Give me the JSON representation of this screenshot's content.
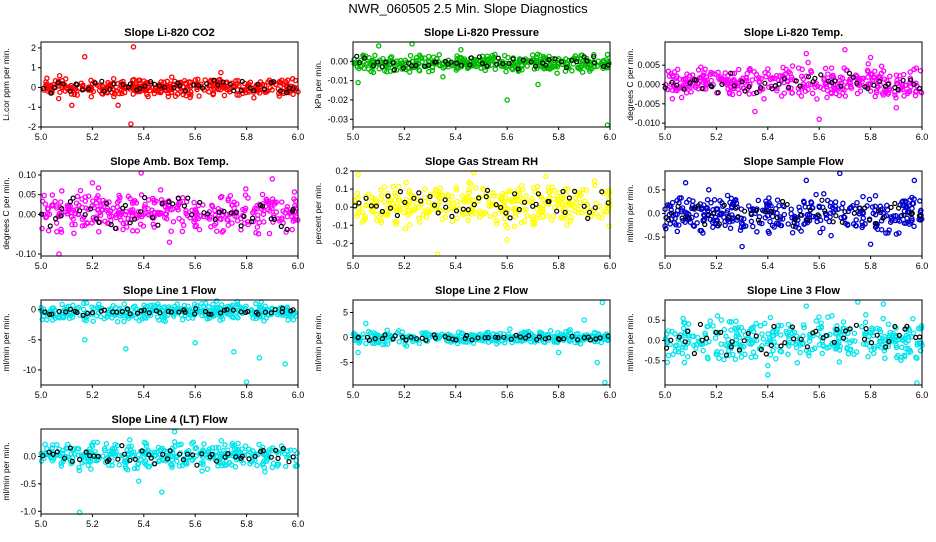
{
  "title": "NWR_060505  2.5 Min. Slope Diagnostics",
  "chart_data": [
    {
      "type": "scatter",
      "title": "Slope Li-820 CO2",
      "ylabel": "Li.cor ppm per min.",
      "color": "#ff0000",
      "xlim": [
        5.0,
        6.0
      ],
      "ylim": [
        -2,
        2.3
      ],
      "xticks": [
        "5.0",
        "5.2",
        "5.4",
        "5.6",
        "5.8",
        "6.0"
      ],
      "yticks": [
        {
          "v": -2,
          "label": "-2"
        },
        {
          "v": -1,
          "label": "-1"
        },
        {
          "v": 0,
          "label": "0"
        },
        {
          "v": 1,
          "label": "1"
        },
        {
          "v": 2,
          "label": "2"
        }
      ],
      "band": [
        -0.5,
        0.5
      ],
      "outliers": [
        [
          5.17,
          1.55
        ],
        [
          5.35,
          -1.85
        ],
        [
          5.36,
          2.05
        ],
        [
          5.12,
          -0.9
        ],
        [
          5.3,
          -0.9
        ],
        [
          5.7,
          0.75
        ]
      ],
      "n": 360,
      "nblack": 50,
      "blackspread": 0.25,
      "seed": 11
    },
    {
      "type": "scatter",
      "title": "Slope Li-820 Pressure",
      "ylabel": "kPa per min.",
      "color": "#00bb00",
      "xlim": [
        5.0,
        6.0
      ],
      "ylim": [
        -0.034,
        0.01
      ],
      "xticks": [
        "5.0",
        "5.2",
        "5.4",
        "5.6",
        "5.8",
        "6.0"
      ],
      "yticks": [
        {
          "v": -0.03,
          "label": "-0.03"
        },
        {
          "v": -0.02,
          "label": "-0.02"
        },
        {
          "v": -0.01,
          "label": "-0.01"
        },
        {
          "v": 0.0,
          "label": "0.00"
        }
      ],
      "band": [
        -0.006,
        0.004
      ],
      "outliers": [
        [
          5.1,
          0.008
        ],
        [
          5.23,
          0.009
        ],
        [
          5.35,
          -0.008
        ],
        [
          5.72,
          -0.012
        ],
        [
          5.99,
          -0.033
        ],
        [
          5.6,
          -0.02
        ],
        [
          5.02,
          -0.011
        ],
        [
          5.42,
          0.006
        ]
      ],
      "n": 360,
      "nblack": 50,
      "blackspread": 0.0025,
      "seed": 23
    },
    {
      "type": "scatter",
      "title": "Slope Li-820 Temp.",
      "ylabel": "degrees C per min.",
      "color": "#ff00ff",
      "xlim": [
        5.0,
        6.0
      ],
      "ylim": [
        -0.011,
        0.011
      ],
      "xticks": [
        "5.0",
        "5.2",
        "5.4",
        "5.6",
        "5.8",
        "6.0"
      ],
      "yticks": [
        {
          "v": -0.01,
          "label": "-0.010"
        },
        {
          "v": -0.005,
          "label": "-0.005"
        },
        {
          "v": 0.0,
          "label": "0.000"
        },
        {
          "v": 0.005,
          "label": "0.005"
        }
      ],
      "band": [
        -0.004,
        0.005
      ],
      "outliers": [
        [
          5.6,
          -0.009
        ],
        [
          5.55,
          0.008
        ],
        [
          5.35,
          -0.007
        ],
        [
          5.8,
          0.007
        ],
        [
          5.9,
          -0.006
        ],
        [
          5.7,
          0.009
        ]
      ],
      "n": 360,
      "nblack": 50,
      "blackspread": 0.002,
      "seed": 37
    },
    {
      "type": "scatter",
      "title": "Slope Amb. Box Temp.",
      "ylabel": "degrees C per min.",
      "color": "#ff00ff",
      "xlim": [
        5.0,
        6.0
      ],
      "ylim": [
        -0.105,
        0.11
      ],
      "xticks": [
        "5.0",
        "5.2",
        "5.4",
        "5.6",
        "5.8",
        "6.0"
      ],
      "yticks": [
        {
          "v": -0.1,
          "label": "-0.10"
        },
        {
          "v": 0.0,
          "label": "0.00"
        },
        {
          "v": 0.05,
          "label": "0.05"
        },
        {
          "v": 0.1,
          "label": "0.10"
        }
      ],
      "band": [
        -0.05,
        0.06
      ],
      "outliers": [
        [
          5.39,
          0.105
        ],
        [
          5.07,
          -0.1
        ],
        [
          5.5,
          -0.07
        ],
        [
          5.9,
          0.09
        ],
        [
          5.2,
          0.08
        ]
      ],
      "n": 360,
      "nblack": 50,
      "blackspread": 0.03,
      "seed": 41
    },
    {
      "type": "scatter",
      "title": "Slope Gas Stream RH",
      "ylabel": "percent per min.",
      "color": "#ffff00",
      "xlim": [
        5.0,
        6.0
      ],
      "ylim": [
        -0.27,
        0.2
      ],
      "xticks": [
        "5.0",
        "5.2",
        "5.4",
        "5.6",
        "5.8",
        "6.0"
      ],
      "yticks": [
        {
          "v": -0.2,
          "label": "-0.2"
        },
        {
          "v": -0.1,
          "label": "-0.1"
        },
        {
          "v": 0.0,
          "label": "0.0"
        },
        {
          "v": 0.1,
          "label": "0.1"
        },
        {
          "v": 0.2,
          "label": "0.2"
        }
      ],
      "band": [
        -0.12,
        0.15
      ],
      "outliers": [
        [
          5.33,
          -0.26
        ],
        [
          5.02,
          0.18
        ],
        [
          5.6,
          -0.18
        ],
        [
          5.75,
          0.17
        ],
        [
          5.47,
          0.19
        ]
      ],
      "n": 360,
      "nblack": 50,
      "blackspread": 0.06,
      "seed": 53
    },
    {
      "type": "scatter",
      "title": "Slope Sample Flow",
      "ylabel": "ml/min per min.",
      "color": "#0000cc",
      "xlim": [
        5.0,
        6.0
      ],
      "ylim": [
        -0.9,
        0.9
      ],
      "xticks": [
        "5.0",
        "5.2",
        "5.4",
        "5.6",
        "5.8",
        "6.0"
      ],
      "yticks": [
        {
          "v": -0.5,
          "label": "-0.5"
        },
        {
          "v": 0.0,
          "label": "0.0"
        },
        {
          "v": 0.5,
          "label": "0.5"
        }
      ],
      "band": [
        -0.45,
        0.45
      ],
      "outliers": [
        [
          5.68,
          0.85
        ],
        [
          5.08,
          0.65
        ],
        [
          5.97,
          0.7
        ],
        [
          5.3,
          -0.7
        ],
        [
          5.8,
          -0.65
        ],
        [
          5.55,
          0.7
        ]
      ],
      "n": 360,
      "nblack": 50,
      "blackspread": 0.2,
      "seed": 67
    },
    {
      "type": "scatter",
      "title": "Slope Line 1 Flow",
      "ylabel": "ml/min per min.",
      "color": "#00e5ee",
      "xlim": [
        5.0,
        6.0
      ],
      "ylim": [
        -12.5,
        1.6
      ],
      "xticks": [
        "5.0",
        "5.2",
        "5.4",
        "5.6",
        "5.8",
        "6.0"
      ],
      "yticks": [
        {
          "v": -10,
          "label": "-10"
        },
        {
          "v": -5,
          "label": "-5"
        },
        {
          "v": 0,
          "label": "0"
        }
      ],
      "band": [
        -2.0,
        1.3
      ],
      "outliers": [
        [
          5.8,
          -12
        ],
        [
          5.85,
          -8
        ],
        [
          5.33,
          -6.5
        ],
        [
          5.17,
          -5
        ],
        [
          5.75,
          -7
        ],
        [
          5.95,
          -9
        ],
        [
          5.6,
          -5.5
        ]
      ],
      "n": 360,
      "nblack": 50,
      "blackspread": 0.4,
      "seed": 71
    },
    {
      "type": "scatter",
      "title": "Slope Line 2 Flow",
      "ylabel": "ml/min per min.",
      "color": "#00e5ee",
      "xlim": [
        5.0,
        6.0
      ],
      "ylim": [
        -9.5,
        7.5
      ],
      "xticks": [
        "5.0",
        "5.2",
        "5.4",
        "5.6",
        "5.8",
        "6.0"
      ],
      "yticks": [
        {
          "v": -5,
          "label": "-5"
        },
        {
          "v": 0,
          "label": "0"
        },
        {
          "v": 5,
          "label": "5"
        }
      ],
      "band": [
        -1.5,
        1.5
      ],
      "outliers": [
        [
          5.98,
          -9
        ],
        [
          5.97,
          7
        ],
        [
          5.95,
          -5
        ],
        [
          5.9,
          3.5
        ],
        [
          5.8,
          -3
        ],
        [
          5.05,
          2.8
        ],
        [
          5.02,
          -3
        ]
      ],
      "n": 360,
      "nblack": 50,
      "blackspread": 0.4,
      "seed": 83
    },
    {
      "type": "scatter",
      "title": "Slope Line 3 Flow",
      "ylabel": "ml/min per min.",
      "color": "#00e5ee",
      "xlim": [
        5.0,
        6.0
      ],
      "ylim": [
        -1.1,
        1.0
      ],
      "xticks": [
        "5.0",
        "5.2",
        "5.4",
        "5.6",
        "5.8",
        "6.0"
      ],
      "yticks": [
        {
          "v": -0.5,
          "label": "-0.5"
        },
        {
          "v": 0.0,
          "label": "0.0"
        },
        {
          "v": 0.5,
          "label": "0.5"
        }
      ],
      "band": [
        -0.6,
        0.6
      ],
      "outliers": [
        [
          5.75,
          0.95
        ],
        [
          5.98,
          -1.05
        ],
        [
          5.85,
          0.9
        ],
        [
          5.4,
          -0.85
        ],
        [
          5.55,
          0.85
        ]
      ],
      "n": 360,
      "nblack": 50,
      "blackspread": 0.3,
      "seed": 97
    },
    {
      "type": "scatter",
      "title": "Slope Line 4 (LT) Flow",
      "ylabel": "ml/min per min.",
      "color": "#00e5ee",
      "xlim": [
        5.0,
        6.0
      ],
      "ylim": [
        -1.05,
        0.5
      ],
      "xticks": [
        "5.0",
        "5.2",
        "5.4",
        "5.6",
        "5.8",
        "6.0"
      ],
      "yticks": [
        {
          "v": -1.0,
          "label": "-1.0"
        },
        {
          "v": -0.5,
          "label": "-0.5"
        },
        {
          "v": 0.0,
          "label": "0.0"
        }
      ],
      "band": [
        -0.25,
        0.3
      ],
      "outliers": [
        [
          5.15,
          -1.02
        ],
        [
          5.38,
          -0.45
        ],
        [
          5.47,
          -0.65
        ],
        [
          5.52,
          0.45
        ],
        [
          5.9,
          -0.2
        ]
      ],
      "n": 360,
      "nblack": 50,
      "blackspread": 0.12,
      "seed": 101
    }
  ]
}
